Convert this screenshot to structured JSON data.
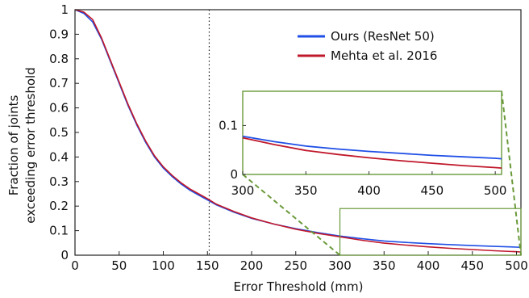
{
  "chart_data": {
    "type": "line",
    "title": "",
    "xlabel": "Error Threshold (mm)",
    "ylabel": [
      "Fraction of joints",
      "exceeding error threshold"
    ],
    "xlim": [
      0,
      505
    ],
    "ylim": [
      0,
      1
    ],
    "xticks": [
      0,
      50,
      100,
      150,
      200,
      250,
      300,
      350,
      400,
      450,
      500
    ],
    "yticks": [
      0,
      0.1,
      0.2,
      0.3,
      0.4,
      0.5,
      0.6,
      0.7,
      0.8,
      0.9,
      1
    ],
    "ytick_labels": [
      "0",
      "0.1",
      "0.2",
      "0.3",
      "0.4",
      "0.5",
      "0.6",
      "0.7",
      "0.8",
      "0.9",
      "1"
    ],
    "reference_line": {
      "x": 152,
      "style": "dotted"
    },
    "legend_position": "top-right",
    "x": [
      0,
      10,
      20,
      30,
      40,
      50,
      60,
      70,
      80,
      90,
      100,
      110,
      120,
      130,
      140,
      150,
      160,
      180,
      200,
      225,
      250,
      275,
      300,
      325,
      350,
      375,
      400,
      425,
      450,
      475,
      500,
      505
    ],
    "series": [
      {
        "name": "Ours (ResNet 50)",
        "color": "#1f4fe6",
        "values": [
          1,
          0.985,
          0.95,
          0.88,
          0.79,
          0.7,
          0.61,
          0.53,
          0.46,
          0.4,
          0.355,
          0.32,
          0.29,
          0.265,
          0.245,
          0.225,
          0.205,
          0.175,
          0.15,
          0.127,
          0.108,
          0.092,
          0.078,
          0.067,
          0.058,
          0.052,
          0.047,
          0.043,
          0.039,
          0.036,
          0.033,
          0.032
        ]
      },
      {
        "name": "Mehta et al. 2016",
        "color": "#c0182b",
        "values": [
          1,
          0.99,
          0.96,
          0.885,
          0.795,
          0.705,
          0.615,
          0.535,
          0.465,
          0.405,
          0.36,
          0.325,
          0.295,
          0.27,
          0.25,
          0.23,
          0.208,
          0.178,
          0.152,
          0.127,
          0.106,
          0.089,
          0.075,
          0.061,
          0.049,
          0.041,
          0.034,
          0.028,
          0.023,
          0.018,
          0.014,
          0.013
        ]
      }
    ],
    "inset": {
      "xlim": [
        300,
        505
      ],
      "ylim": [
        0,
        0.17
      ],
      "xticks": [
        300,
        350,
        400,
        450,
        500
      ],
      "yticks": [
        0,
        0.1
      ],
      "ytick_labels": [
        "0",
        "0.1"
      ],
      "source_region": {
        "x": [
          300,
          505
        ],
        "y": [
          0,
          0.19
        ]
      },
      "border_color": "#6a9a3a"
    }
  }
}
